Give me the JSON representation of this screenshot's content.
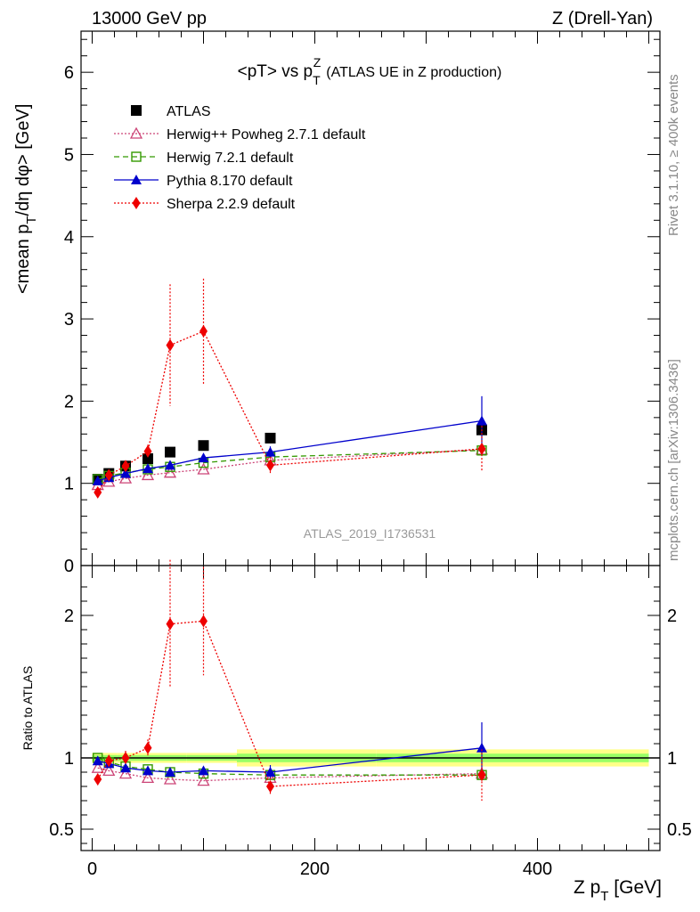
{
  "header": {
    "left": "13000 GeV pp",
    "right": "Z (Drell-Yan)"
  },
  "side_text": {
    "rivet": "Rivet 3.1.10, ≥ 400k events",
    "mcplots": "mcplots.cern.ch [arXiv:1306.3436]"
  },
  "colors": {
    "data": "#000000",
    "herwigpp": "#cc4477",
    "herwig7": "#339900",
    "pythia": "#0000cc",
    "sherpa": "#ee0000",
    "band_inner": "#99ff66",
    "band_outer": "#ffff88"
  },
  "chart_data": {
    "type": "scatter",
    "title_parts": {
      "pre": "<pT> vs p",
      "sup": "Z",
      "sub": "T",
      "post": "(ATLAS UE in Z production)"
    },
    "analysis_label": "ATLAS_2019_I1736531",
    "xlabel": {
      "main": "Z p",
      "sub": "T",
      "unit": " [GeV]"
    },
    "ylabel": "<mean p_T/dη dφ> [GeV]",
    "ylabel_parts": {
      "pre": "<mean p",
      "sub": "T",
      "post": "/dη dφ> [GeV]"
    },
    "ratio_ylabel": "Ratio to ATLAS",
    "xlim": [
      -10,
      510
    ],
    "ylim_main": [
      0,
      6.5
    ],
    "ylim_ratio": [
      0.35,
      2.35
    ],
    "x_ticks": [
      0,
      200,
      400
    ],
    "x_tick_labels": [
      "0",
      "200",
      "400"
    ],
    "y_ticks_main": [
      0,
      1,
      2,
      3,
      4,
      5,
      6
    ],
    "y_tick_labels_main": [
      "0",
      "1",
      "2",
      "3",
      "4",
      "5",
      "6"
    ],
    "y_ticks_ratio": [
      0.5,
      1,
      2
    ],
    "y_tick_labels_ratio": [
      "0.5",
      "1",
      "2"
    ],
    "x": [
      5,
      15,
      30,
      50,
      70,
      100,
      160,
      350
    ],
    "ratio_band": {
      "inner": [
        0.02,
        0.02,
        0.02,
        0.02,
        0.02,
        0.02,
        0.03,
        0.03
      ],
      "outer": [
        0.035,
        0.035,
        0.035,
        0.035,
        0.035,
        0.035,
        0.06,
        0.06
      ]
    },
    "series": [
      {
        "name": "ATLAS",
        "key": "data",
        "marker": "square-filled",
        "line": "none",
        "values": [
          1.05,
          1.12,
          1.21,
          1.3,
          1.38,
          1.46,
          1.55,
          1.65
        ]
      },
      {
        "name": "Herwig++ Powheg 2.7.1 default",
        "key": "herwigpp",
        "marker": "triangle-open",
        "line": "dotted",
        "values": [
          0.98,
          1.02,
          1.06,
          1.1,
          1.13,
          1.17,
          1.28,
          1.41
        ],
        "ratio": [
          0.93,
          0.91,
          0.89,
          0.86,
          0.85,
          0.84,
          0.86,
          0.89
        ]
      },
      {
        "name": "Herwig 7.2.1 default",
        "key": "herwig7",
        "marker": "square-open",
        "line": "dashed",
        "values": [
          1.05,
          1.09,
          1.13,
          1.17,
          1.2,
          1.25,
          1.32,
          1.4
        ],
        "ratio": [
          1.0,
          0.97,
          0.94,
          0.92,
          0.9,
          0.89,
          0.88,
          0.88
        ]
      },
      {
        "name": "Pythia 8.170 default",
        "key": "pythia",
        "marker": "triangle-filled",
        "line": "solid",
        "values": [
          1.03,
          1.07,
          1.12,
          1.18,
          1.22,
          1.31,
          1.38,
          1.76
        ],
        "errors": [
          0,
          0,
          0,
          0,
          0,
          0,
          0.07,
          0.3
        ],
        "ratio": [
          0.98,
          0.96,
          0.93,
          0.91,
          0.9,
          0.91,
          0.9,
          1.07
        ],
        "ratio_errors": [
          0,
          0,
          0,
          0,
          0,
          0,
          0.05,
          0.18
        ]
      },
      {
        "name": "Sherpa 2.2.9 default",
        "key": "sherpa",
        "marker": "diamond-filled",
        "line": "dotted",
        "values": [
          0.89,
          1.1,
          1.21,
          1.39,
          2.68,
          2.85,
          1.22,
          1.42
        ],
        "errors": [
          0.05,
          0.05,
          0.06,
          0.08,
          0.74,
          0.64,
          0.1,
          0.28
        ],
        "ratio": [
          0.85,
          0.98,
          1.0,
          1.07,
          1.94,
          1.96,
          0.8,
          0.88
        ],
        "ratio_errors": [
          0.04,
          0.04,
          0.05,
          0.06,
          0.45,
          0.38,
          0.06,
          0.18
        ]
      }
    ]
  }
}
